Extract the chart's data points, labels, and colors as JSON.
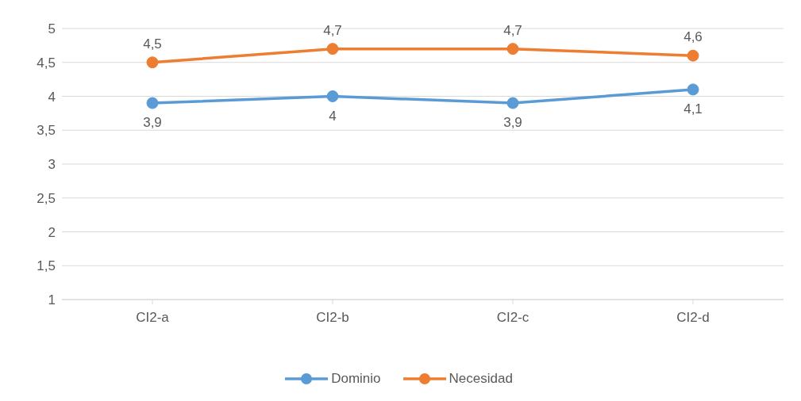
{
  "chart_data": {
    "type": "line",
    "categories": [
      "CI2-a",
      "CI2-b",
      "CI2-c",
      "CI2-d"
    ],
    "series": [
      {
        "name": "Dominio",
        "color": "#5b9bd5",
        "values": [
          3.9,
          4,
          3.9,
          4.1
        ],
        "value_labels": [
          "3,9",
          "4",
          "3,9",
          "4,1"
        ]
      },
      {
        "name": "Necesidad",
        "color": "#ed7d31",
        "values": [
          4.5,
          4.7,
          4.7,
          4.6
        ],
        "value_labels": [
          "4,5",
          "4,7",
          "4,7",
          "4,6"
        ]
      }
    ],
    "ylim": [
      1,
      5
    ],
    "yticks": [
      1,
      {
        "value": 1.5,
        "label": "1,5"
      },
      2,
      {
        "value": 2.5,
        "label": "2,5"
      },
      3,
      {
        "value": 3.5,
        "label": "3,5"
      },
      4,
      {
        "value": 4.5,
        "label": "4,5"
      },
      5
    ],
    "grid": "y",
    "legend": "bottom",
    "marker": "circle",
    "line_style": "solid"
  }
}
